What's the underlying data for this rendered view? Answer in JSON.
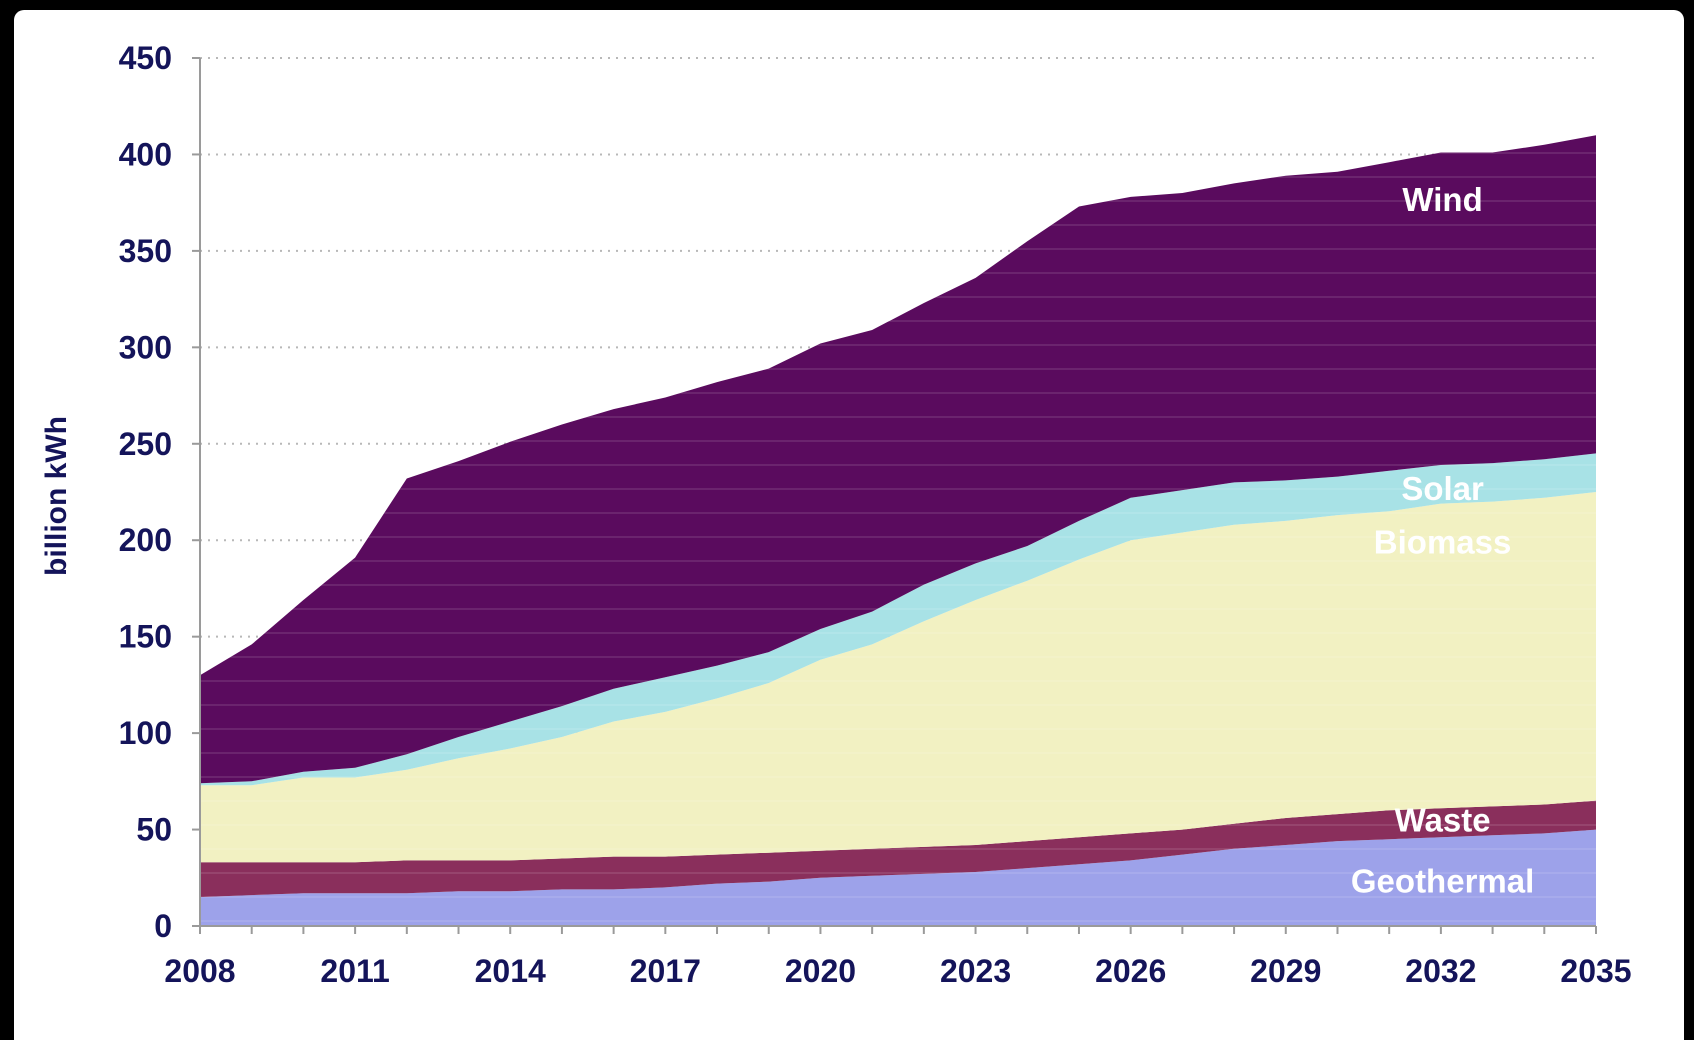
{
  "chart_data": {
    "type": "area",
    "stacked": true,
    "title": "",
    "xlabel": "",
    "ylabel": "billion kWh",
    "ylim": [
      0,
      450
    ],
    "yticks": [
      0,
      50,
      100,
      150,
      200,
      250,
      300,
      350,
      400,
      450
    ],
    "xticks": [
      "2008",
      "2011",
      "2014",
      "2017",
      "2020",
      "2023",
      "2026",
      "2029",
      "2032",
      "2035"
    ],
    "grid": "horizontal dotted",
    "x": [
      2008,
      2009,
      2010,
      2011,
      2012,
      2013,
      2014,
      2015,
      2016,
      2017,
      2018,
      2019,
      2020,
      2021,
      2022,
      2023,
      2024,
      2025,
      2026,
      2027,
      2028,
      2029,
      2030,
      2031,
      2032,
      2033,
      2034,
      2035
    ],
    "series": [
      {
        "name": "Geothermal",
        "color": "#9da2ea",
        "values": [
          15,
          16,
          17,
          17,
          17,
          18,
          18,
          19,
          19,
          20,
          22,
          23,
          25,
          26,
          27,
          28,
          30,
          32,
          34,
          37,
          40,
          42,
          44,
          45,
          46,
          47,
          48,
          50
        ]
      },
      {
        "name": "Waste",
        "color": "#8a2f5c",
        "values": [
          18,
          17,
          16,
          16,
          17,
          16,
          16,
          16,
          17,
          16,
          15,
          15,
          14,
          14,
          14,
          14,
          14,
          14,
          14,
          13,
          13,
          14,
          14,
          15,
          15,
          15,
          15,
          15
        ]
      },
      {
        "name": "Biomass",
        "color": "#f2f1c2",
        "values": [
          40,
          40,
          44,
          44,
          47,
          53,
          58,
          63,
          70,
          75,
          81,
          88,
          99,
          106,
          117,
          127,
          135,
          144,
          152,
          154,
          155,
          154,
          155,
          155,
          158,
          158,
          159,
          160
        ]
      },
      {
        "name": "Solar",
        "color": "#a8e2e6",
        "values": [
          1,
          2,
          3,
          5,
          8,
          11,
          14,
          16,
          17,
          18,
          17,
          16,
          16,
          17,
          19,
          19,
          18,
          20,
          22,
          22,
          22,
          21,
          20,
          21,
          20,
          20,
          20,
          20
        ]
      },
      {
        "name": "Wind",
        "color": "#5a0b5e",
        "values": [
          56,
          71,
          89,
          109,
          143,
          143,
          145,
          146,
          145,
          145,
          147,
          147,
          148,
          146,
          146,
          148,
          158,
          163,
          156,
          154,
          155,
          158,
          158,
          160,
          162,
          161,
          163,
          165
        ]
      }
    ],
    "labels_on_chart": [
      "Wind",
      "Solar",
      "Biomass",
      "Waste",
      "Geothermal"
    ]
  }
}
